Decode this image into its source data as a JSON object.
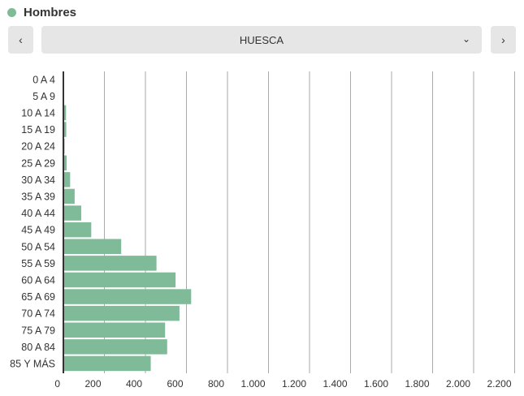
{
  "legend": {
    "label": "Hombres",
    "color": "#7fbb98"
  },
  "nav": {
    "prev_icon": "chevron-left-icon",
    "next_icon": "chevron-right-icon",
    "prev": "‹",
    "next": "›",
    "selected": "HUESCA",
    "dropdown_icon": "chevron-down-icon"
  },
  "chart_data": {
    "type": "bar",
    "orientation": "horizontal",
    "categories": [
      "0 A 4",
      "5 A 9",
      "10 A 14",
      "15 A 19",
      "20 A 24",
      "25 A 29",
      "30 A 34",
      "35 A 39",
      "40 A 44",
      "45 A 49",
      "50 A 54",
      "55 A 59",
      "60 A 64",
      "65 A 69",
      "70 A 74",
      "75 A 79",
      "80 A 84",
      "85 Y MÁS"
    ],
    "series": [
      {
        "name": "Hombres",
        "values": [
          2,
          2,
          13,
          14,
          6,
          16,
          33,
          55,
          87,
          136,
          282,
          454,
          547,
          623,
          566,
          496,
          506,
          426
        ],
        "color": "#7fbb98"
      }
    ],
    "xlim": [
      0,
      2200
    ],
    "xticks": [
      0,
      200,
      400,
      600,
      800,
      1000,
      1200,
      1400,
      1600,
      1800,
      2000,
      2200
    ],
    "xtick_labels": [
      "0",
      "200",
      "400",
      "600",
      "800",
      "1.000",
      "1.200",
      "1.400",
      "1.600",
      "1.800",
      "2.000",
      "2.200"
    ],
    "grid": true
  }
}
